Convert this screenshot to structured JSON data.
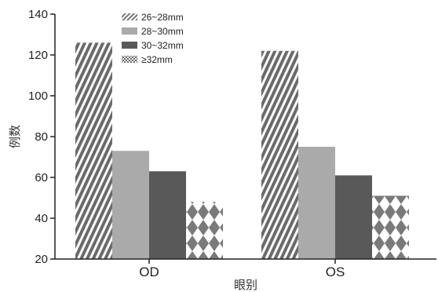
{
  "chart_data": {
    "type": "bar",
    "title": "",
    "xlabel": "眼别",
    "ylabel": "例数",
    "categories": [
      "OD",
      "OS"
    ],
    "ylim": [
      20,
      140
    ],
    "yticks": [
      20,
      40,
      60,
      80,
      100,
      120,
      140
    ],
    "legend_position": "top-left",
    "grid": false,
    "series": [
      {
        "name": "26~28mm",
        "values": [
          126,
          122
        ],
        "fill": "diagonal-hatch"
      },
      {
        "name": "28~30mm",
        "values": [
          73,
          75
        ],
        "color": "#aaaaaa"
      },
      {
        "name": "30~32mm",
        "values": [
          63,
          61
        ],
        "color": "#595959"
      },
      {
        "name": "≥32mm",
        "values": [
          48,
          51
        ],
        "fill": "diamond-pattern"
      }
    ]
  }
}
